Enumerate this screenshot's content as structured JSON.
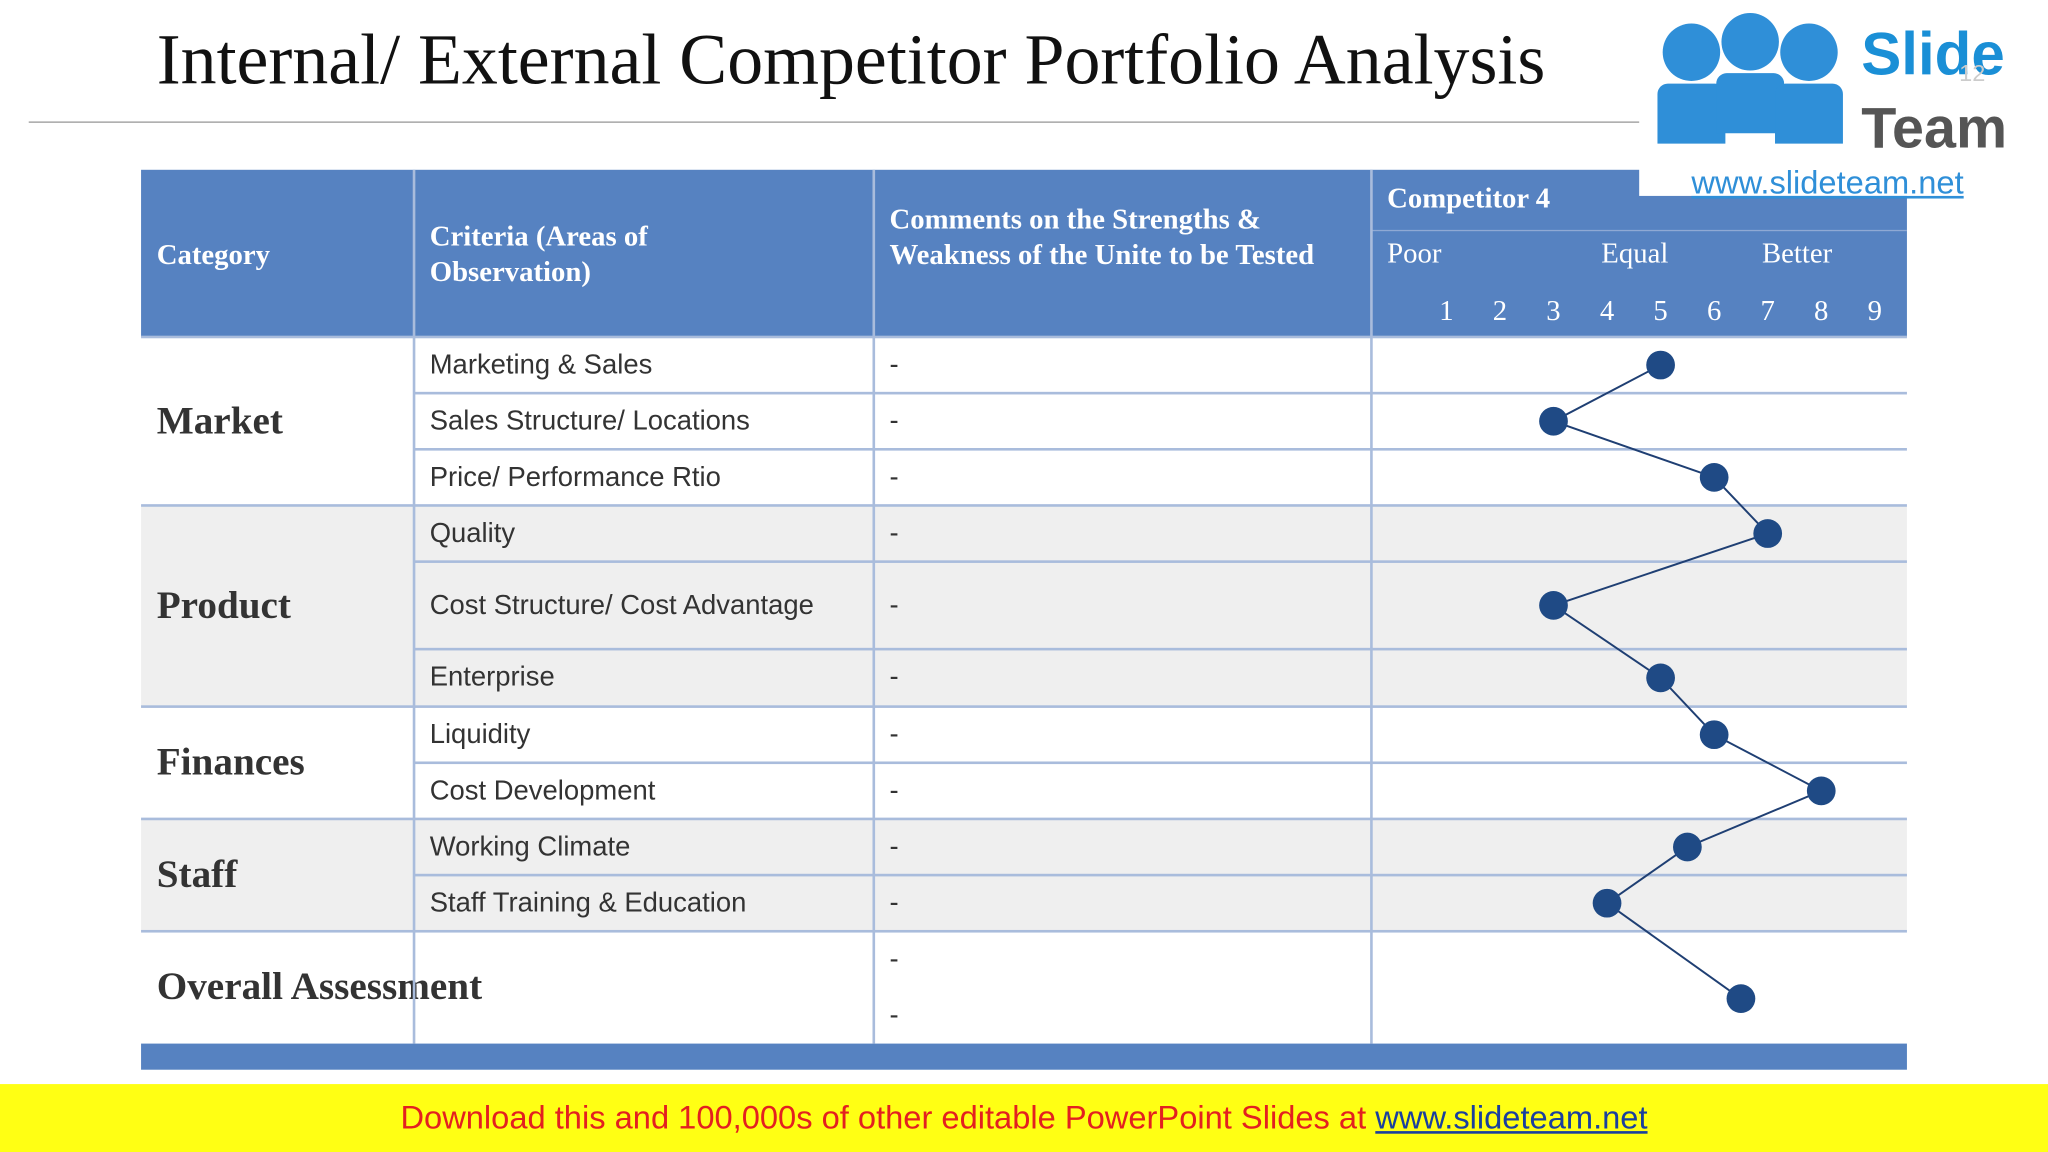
{
  "title": "Internal/ External Competitor Portfolio Analysis",
  "slide_number": "12",
  "logo": {
    "brand_top": "Slide",
    "brand_bottom": "Team",
    "url": "www.slideteam.net"
  },
  "table": {
    "headers": [
      "Category",
      "Criteria (Areas of Observation)",
      "Comments on the Strengths & Weakness of the Unite to be Tested",
      "Competitor 4"
    ],
    "scale_labels": [
      "Poor",
      "Equal",
      "Better"
    ],
    "scale": {
      "xlim": [
        -0.4,
        9.6
      ],
      "ticks": [
        1,
        2,
        3,
        4,
        5,
        6,
        7,
        8,
        9
      ]
    },
    "groups": [
      {
        "category": "Market",
        "rows": [
          {
            "criteria": "Marketing & Sales",
            "comment": "-",
            "rating": 5
          },
          {
            "criteria": "Sales Structure/ Locations",
            "comment": "-",
            "rating": 3
          },
          {
            "criteria": "Price/ Performance Rtio",
            "comment": "-",
            "rating": 6
          }
        ]
      },
      {
        "category": "Product",
        "rows": [
          {
            "criteria": "Quality",
            "comment": "-",
            "rating": 7
          },
          {
            "criteria": "Cost Structure/ Cost Advantage",
            "comment": "-",
            "rating": 3
          },
          {
            "criteria": "Enterprise",
            "comment": "-",
            "rating": 5
          }
        ]
      },
      {
        "category": "Finances",
        "rows": [
          {
            "criteria": "Liquidity",
            "comment": "-",
            "rating": 6
          },
          {
            "criteria": "Cost Development",
            "comment": "-",
            "rating": 8
          }
        ]
      },
      {
        "category": "Staff",
        "rows": [
          {
            "criteria": "Working Climate",
            "comment": "-",
            "rating": 5.5
          },
          {
            "criteria": "Staff Training & Education",
            "comment": "-",
            "rating": 4
          }
        ]
      }
    ],
    "overall": {
      "category": "Overall Assessment",
      "comments": [
        "-",
        "-"
      ],
      "rating": 6.5
    }
  },
  "footer": {
    "text": "Download this and 100,000s of other editable PowerPoint Slides at",
    "link": "www.slideteam.net"
  }
}
